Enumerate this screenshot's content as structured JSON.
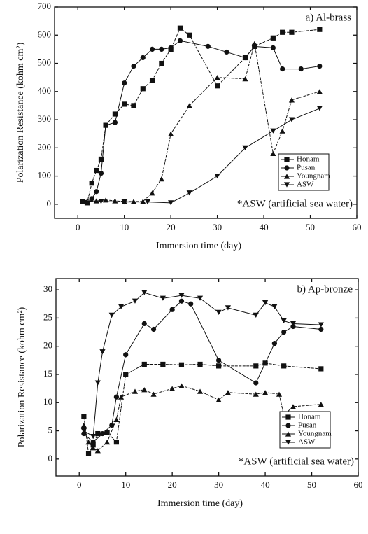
{
  "chart_data": [
    {
      "type": "line",
      "title": "a) Al-brass",
      "xlabel": "Immersion time (day)",
      "ylabel": "Polarization Resistance (kohm cm²)",
      "annotation": "*ASW (artificial sea water)",
      "legend": "lower right",
      "xlim": [
        -5,
        60
      ],
      "xticks": [
        0,
        10,
        20,
        30,
        40,
        50,
        60
      ],
      "ylim": [
        -50,
        700
      ],
      "yticks": [
        0,
        100,
        200,
        300,
        400,
        500,
        600,
        700
      ],
      "series": [
        {
          "name": "Honam",
          "marker": "square",
          "color": "#111111",
          "x": [
            1,
            2,
            3,
            4,
            5,
            6,
            8,
            10,
            12,
            14,
            16,
            18,
            20,
            22,
            24,
            30,
            36,
            38,
            42,
            44,
            46,
            52
          ],
          "values": [
            10,
            5,
            75,
            120,
            160,
            280,
            320,
            355,
            350,
            410,
            440,
            500,
            550,
            625,
            600,
            420,
            520,
            560,
            590,
            610,
            610,
            620
          ]
        },
        {
          "name": "Pusan",
          "marker": "circle",
          "color": "#111111",
          "x": [
            1,
            3,
            4,
            5,
            6,
            8,
            10,
            12,
            14,
            16,
            18,
            20,
            22,
            28,
            32,
            36,
            38,
            42,
            44,
            48,
            52
          ],
          "values": [
            10,
            20,
            45,
            110,
            280,
            290,
            430,
            490,
            520,
            550,
            550,
            555,
            580,
            560,
            540,
            520,
            560,
            555,
            480,
            480,
            490
          ]
        },
        {
          "name": "Youngnam",
          "marker": "triangle",
          "color": "#111111",
          "x": [
            1,
            4,
            6,
            8,
            10,
            12,
            14,
            16,
            18,
            20,
            24,
            30,
            36,
            38,
            42,
            44,
            46,
            52
          ],
          "values": [
            10,
            12,
            15,
            12,
            10,
            10,
            10,
            40,
            90,
            250,
            350,
            450,
            445,
            570,
            180,
            260,
            370,
            400
          ]
        },
        {
          "name": "ASW",
          "marker": "triangle-down",
          "color": "#111111",
          "x": [
            1,
            5,
            10,
            15,
            20,
            24,
            30,
            36,
            42,
            46,
            52
          ],
          "values": [
            10,
            10,
            8,
            8,
            5,
            40,
            100,
            200,
            260,
            300,
            340
          ]
        }
      ]
    },
    {
      "type": "line",
      "title": "b) Ap-bronze",
      "xlabel": "Immersion time (day)",
      "ylabel": "Polarization Resistance (kohm cm²)",
      "annotation": "*ASW (artificial sea water)",
      "legend": "lower right",
      "xlim": [
        -5,
        60
      ],
      "xticks": [
        0,
        10,
        20,
        30,
        40,
        50,
        60
      ],
      "ylim": [
        -3,
        32
      ],
      "yticks": [
        0,
        5,
        10,
        15,
        20,
        25,
        30
      ],
      "series": [
        {
          "name": "Honam",
          "marker": "square",
          "color": "#111111",
          "x": [
            1,
            2,
            3,
            4,
            6,
            8,
            10,
            14,
            18,
            22,
            26,
            30,
            38,
            40,
            44,
            52
          ],
          "values": [
            7.5,
            1,
            2.5,
            4.5,
            4.7,
            3,
            15,
            16.8,
            16.8,
            16.7,
            16.8,
            16.5,
            16.5,
            17,
            16.5,
            16
          ]
        },
        {
          "name": "Pusan",
          "marker": "circle",
          "color": "#111111",
          "x": [
            1,
            3,
            5,
            7,
            8,
            10,
            14,
            16,
            20,
            22,
            24,
            30,
            38,
            42,
            44,
            46,
            52
          ],
          "values": [
            4.5,
            3,
            4.5,
            6,
            11,
            18.5,
            24,
            23,
            26.5,
            28,
            27.5,
            17.5,
            13.5,
            20.5,
            22.5,
            23.5,
            23
          ]
        },
        {
          "name": "Youngnam",
          "marker": "triangle",
          "color": "#111111",
          "x": [
            1,
            2,
            3,
            4,
            6,
            8,
            9,
            12,
            14,
            16,
            20,
            22,
            26,
            30,
            32,
            38,
            40,
            43,
            44,
            46,
            52
          ],
          "values": [
            6,
            3,
            2,
            1.5,
            3,
            7,
            11,
            12,
            12.3,
            11.5,
            12.5,
            13,
            12,
            10.5,
            11.8,
            11.5,
            11.8,
            11.5,
            7.8,
            9.3,
            9.7
          ]
        },
        {
          "name": "ASW",
          "marker": "triangle-down",
          "color": "#111111",
          "x": [
            1,
            3,
            4,
            5,
            7,
            9,
            12,
            14,
            18,
            22,
            26,
            30,
            32,
            38,
            40,
            42,
            44,
            46,
            52
          ],
          "values": [
            5,
            4,
            13.5,
            19,
            25.5,
            27,
            28,
            29.5,
            28.5,
            29,
            28.5,
            26,
            26.8,
            25.5,
            27.7,
            27,
            24.5,
            24,
            23.8
          ]
        }
      ]
    }
  ]
}
